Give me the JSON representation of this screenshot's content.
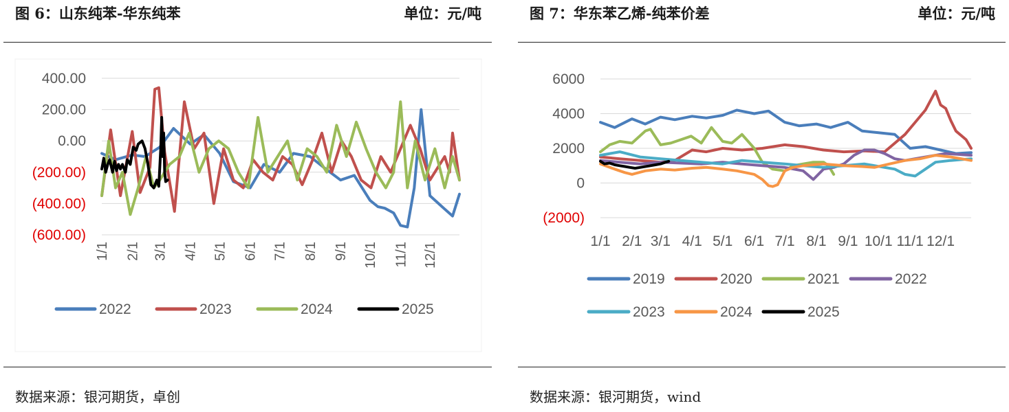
{
  "left": {
    "title": "图 6：山东纯苯-华东纯苯",
    "unit": "单位：元/吨",
    "source": "数据来源：银河期货，卓创"
  },
  "right": {
    "title": "图 7：华东苯乙烯-纯苯价差",
    "unit": "单位：元/吨",
    "source": "数据来源：银河期货，wind"
  },
  "chart_data": [
    {
      "type": "line",
      "ylim": [
        -600,
        400
      ],
      "y_tick_labels": [
        "400.00",
        "200.00",
        "0.00",
        "(200.00)",
        "(400.00)",
        "(600.00)"
      ],
      "y_tick_values": [
        400,
        200,
        0,
        -200,
        -400,
        -600
      ],
      "negative_label_color": "#e00000",
      "x_tick_labels": [
        "1/1",
        "2/1",
        "3/1",
        "4/1",
        "5/1",
        "6/1",
        "7/1",
        "8/1",
        "9/1",
        "10/1",
        "11/1",
        "12/1"
      ],
      "legend_position": "bottom",
      "grid": true,
      "series": [
        {
          "name": "2022",
          "color": "#4a7ebb",
          "x": [
            1,
            15,
            32,
            45,
            60,
            74,
            91,
            105,
            121,
            135,
            152,
            166,
            182,
            196,
            213,
            227,
            244,
            258,
            274,
            282,
            289,
            298,
            305,
            312,
            319,
            326,
            335,
            349,
            358,
            365
          ],
          "values": [
            -80,
            -120,
            -90,
            -100,
            -40,
            80,
            -20,
            40,
            -80,
            -260,
            -300,
            -150,
            -200,
            -80,
            -100,
            -170,
            -250,
            -220,
            -380,
            -420,
            -430,
            -460,
            -540,
            -550,
            -300,
            200,
            -350,
            -430,
            -480,
            -340
          ]
        },
        {
          "name": "2023",
          "color": "#c0504d",
          "x": [
            1,
            10,
            20,
            32,
            40,
            50,
            55,
            59,
            65,
            75,
            85,
            95,
            105,
            115,
            125,
            135,
            145,
            155,
            165,
            175,
            185,
            195,
            205,
            215,
            225,
            235,
            245,
            255,
            265,
            275,
            285,
            295,
            305,
            315,
            325,
            335,
            345,
            350,
            355,
            358,
            365
          ],
          "values": [
            -350,
            70,
            -350,
            60,
            -330,
            -170,
            330,
            340,
            -70,
            -450,
            250,
            -50,
            50,
            -400,
            -50,
            -250,
            -300,
            -120,
            -200,
            -250,
            -100,
            -150,
            -280,
            -130,
            50,
            -200,
            0,
            -100,
            -250,
            -300,
            -100,
            -200,
            -50,
            100,
            -50,
            -250,
            -150,
            -100,
            -200,
            50,
            -250
          ]
        },
        {
          "name": "2024",
          "color": "#9bbb59",
          "x": [
            1,
            8,
            15,
            22,
            30,
            38,
            46,
            54,
            60,
            70,
            80,
            90,
            100,
            110,
            120,
            130,
            140,
            150,
            160,
            170,
            180,
            190,
            200,
            210,
            220,
            230,
            240,
            250,
            260,
            270,
            280,
            290,
            298,
            305,
            312,
            320,
            330,
            340,
            350,
            358,
            365
          ],
          "values": [
            -350,
            0,
            -300,
            -200,
            -470,
            -300,
            -100,
            -300,
            -250,
            -150,
            -100,
            50,
            -200,
            -50,
            0,
            -50,
            -200,
            -300,
            150,
            -200,
            -100,
            0,
            -250,
            -50,
            -100,
            -200,
            100,
            -100,
            120,
            -50,
            -200,
            -300,
            -200,
            250,
            -300,
            0,
            -250,
            -50,
            -300,
            -100,
            -250
          ]
        },
        {
          "name": "2025",
          "color": "#000000",
          "x": [
            1,
            3,
            5,
            7,
            9,
            12,
            14,
            16,
            18,
            20,
            22,
            25,
            27,
            30,
            33,
            36,
            38,
            42,
            45,
            48,
            51,
            54,
            57,
            59,
            61,
            62,
            63,
            64,
            65,
            66,
            68
          ],
          "values": [
            -180,
            -110,
            -200,
            -150,
            -120,
            -200,
            -130,
            -190,
            -150,
            -180,
            -150,
            -200,
            -120,
            -150,
            -40,
            -60,
            -20,
            0,
            -50,
            -150,
            -280,
            -300,
            -250,
            -290,
            -50,
            150,
            -100,
            50,
            -200,
            -260,
            -250
          ]
        }
      ]
    },
    {
      "type": "line",
      "ylim": [
        -2000,
        6000
      ],
      "y_tick_labels": [
        "6000",
        "4000",
        "2000",
        "0",
        "(2000)"
      ],
      "y_tick_values": [
        6000,
        4000,
        2000,
        0,
        -2000
      ],
      "negative_label_color": "#e00000",
      "x_tick_labels": [
        "1/1",
        "2/1",
        "3/1",
        "4/1",
        "5/1",
        "6/1",
        "7/1",
        "8/1",
        "9/1",
        "10/1",
        "11/1",
        "12/1"
      ],
      "legend_position": "bottom",
      "grid": true,
      "series": [
        {
          "name": "2019",
          "color": "#4a7ebb",
          "x": [
            1,
            15,
            32,
            45,
            60,
            74,
            91,
            105,
            121,
            135,
            152,
            166,
            182,
            196,
            213,
            227,
            244,
            258,
            274,
            290,
            305,
            320,
            335,
            350,
            365
          ],
          "values": [
            3500,
            3200,
            3700,
            3400,
            3800,
            3650,
            3850,
            3750,
            3900,
            4200,
            4000,
            4150,
            3500,
            3300,
            3400,
            3200,
            3500,
            3000,
            2900,
            2800,
            2000,
            2100,
            1900,
            1700,
            1750
          ]
        },
        {
          "name": "2020",
          "color": "#c0504d",
          "x": [
            1,
            20,
            40,
            60,
            74,
            91,
            105,
            121,
            140,
            160,
            182,
            200,
            220,
            240,
            260,
            280,
            300,
            310,
            320,
            330,
            335,
            340,
            345,
            350,
            360,
            365
          ],
          "values": [
            1500,
            1400,
            1300,
            1200,
            1300,
            1900,
            1800,
            2000,
            1900,
            2000,
            2200,
            2100,
            1900,
            1800,
            1850,
            1800,
            2800,
            3500,
            4200,
            5300,
            4500,
            4300,
            3600,
            3000,
            2500,
            2000
          ]
        },
        {
          "name": "2021",
          "color": "#9bbb59",
          "x": [
            1,
            10,
            20,
            32,
            45,
            50,
            60,
            70,
            80,
            90,
            100,
            110,
            121,
            130,
            140,
            152,
            160,
            170,
            182,
            190,
            200,
            210,
            220,
            225,
            230
          ],
          "values": [
            1800,
            2200,
            2400,
            2300,
            3000,
            3100,
            2200,
            2300,
            2500,
            2700,
            2300,
            3200,
            2400,
            2300,
            2800,
            2000,
            1200,
            800,
            700,
            1000,
            1100,
            1200,
            1200,
            1000,
            500
          ]
        },
        {
          "name": "2022",
          "color": "#8064a2",
          "x": [
            1,
            20,
            40,
            60,
            80,
            100,
            121,
            140,
            160,
            182,
            200,
            210,
            220,
            230,
            240,
            250,
            260,
            270,
            280,
            290,
            300,
            320,
            340,
            365
          ],
          "values": [
            1300,
            1200,
            1100,
            1200,
            1150,
            1100,
            1200,
            1100,
            1000,
            900,
            700,
            200,
            800,
            900,
            1100,
            1600,
            1900,
            1900,
            1700,
            1400,
            1300,
            1500,
            1700,
            1600
          ]
        },
        {
          "name": "2023",
          "color": "#4bacc6",
          "x": [
            1,
            20,
            40,
            60,
            80,
            100,
            121,
            140,
            160,
            182,
            200,
            220,
            240,
            260,
            280,
            290,
            300,
            310,
            320,
            330,
            345,
            365
          ],
          "values": [
            1600,
            1800,
            1500,
            1400,
            1300,
            1200,
            1100,
            1300,
            1200,
            1100,
            1000,
            900,
            1000,
            1100,
            900,
            800,
            500,
            400,
            800,
            1200,
            1300,
            1400
          ]
        },
        {
          "name": "2024",
          "color": "#f79646",
          "x": [
            1,
            15,
            25,
            32,
            45,
            60,
            74,
            91,
            105,
            121,
            135,
            152,
            160,
            166,
            170,
            175,
            182,
            190,
            200,
            220,
            240,
            258,
            270,
            285,
            300,
            315,
            330,
            345,
            365
          ],
          "values": [
            1100,
            800,
            600,
            500,
            700,
            800,
            750,
            850,
            900,
            800,
            700,
            500,
            200,
            -150,
            -200,
            -100,
            700,
            900,
            1000,
            1100,
            1000,
            950,
            900,
            1100,
            1300,
            1400,
            1600,
            1500,
            1300
          ]
        },
        {
          "name": "2025",
          "color": "#000000",
          "x": [
            1,
            5,
            10,
            15,
            20,
            25,
            30,
            35,
            40,
            45,
            50,
            55,
            60,
            65,
            68
          ],
          "values": [
            1250,
            1100,
            1150,
            1050,
            1000,
            950,
            900,
            850,
            900,
            950,
            1000,
            1050,
            1100,
            1200,
            1250
          ]
        }
      ]
    }
  ]
}
